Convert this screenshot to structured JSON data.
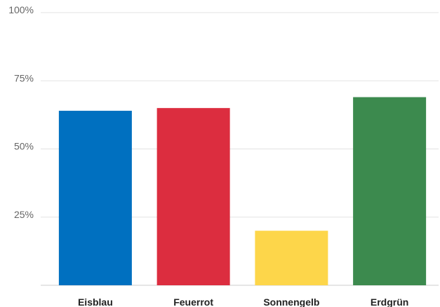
{
  "chart_data": {
    "type": "bar",
    "categories": [
      "Eisblau",
      "Feuerrot",
      "Sonnengelb",
      "Erdgrün"
    ],
    "values": [
      64,
      65,
      20,
      69
    ],
    "colors": [
      "#0070c0",
      "#dc2d3f",
      "#fdd64a",
      "#3c8a4e"
    ],
    "ylim": [
      0,
      100
    ],
    "yticks": [
      {
        "value": 25,
        "label": "25%"
      },
      {
        "value": 50,
        "label": "50%"
      },
      {
        "value": 75,
        "label": "75%"
      },
      {
        "value": 100,
        "label": "100%"
      }
    ],
    "grid": true,
    "legend": "none",
    "title": "",
    "xlabel": "",
    "ylabel": ""
  }
}
